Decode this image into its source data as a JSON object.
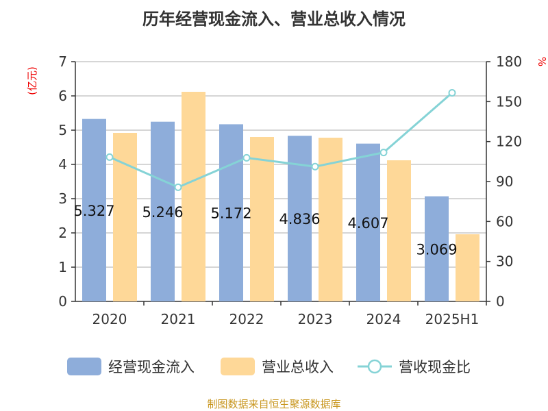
{
  "chart_data": {
    "type": "bar",
    "title": "历年经营现金流入、营业总收入情况",
    "categories": [
      "2020",
      "2021",
      "2022",
      "2023",
      "2024",
      "2025H1"
    ],
    "ylabel": "(亿元)",
    "ylabel_right": "%",
    "ylim": [
      0,
      7
    ],
    "yticks": [
      0,
      1,
      2,
      3,
      4,
      5,
      6,
      7
    ],
    "ylim_right": [
      0,
      180
    ],
    "yticks_right": [
      0,
      30,
      60,
      90,
      120,
      150,
      180
    ],
    "grid": true,
    "legend_position": "bottom",
    "series": [
      {
        "name": "经营现金流入",
        "type": "bar",
        "axis": "left",
        "color": "#8eadda",
        "values": [
          5.327,
          5.246,
          5.172,
          4.836,
          4.607,
          3.069
        ],
        "labels": [
          "5.327",
          "5.246",
          "5.172",
          "4.836",
          "4.607",
          "3.069"
        ]
      },
      {
        "name": "营业总收入",
        "type": "bar",
        "axis": "left",
        "color": "#fed898",
        "values": [
          4.92,
          6.12,
          4.8,
          4.78,
          4.12,
          1.96
        ]
      },
      {
        "name": "营收现金比",
        "type": "line",
        "axis": "right",
        "color": "#85d3d6",
        "values": [
          108.3,
          85.7,
          107.8,
          101.2,
          111.8,
          156.6
        ]
      }
    ]
  },
  "source": "制图数据来自恒生聚源数据库"
}
